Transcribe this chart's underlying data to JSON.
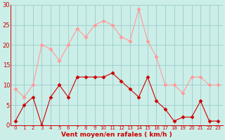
{
  "x": [
    0,
    1,
    2,
    3,
    4,
    5,
    6,
    7,
    8,
    9,
    10,
    11,
    12,
    13,
    14,
    15,
    16,
    17,
    18,
    19,
    20,
    21,
    22,
    23
  ],
  "mean_wind": [
    1,
    5,
    7,
    0,
    7,
    10,
    7,
    12,
    12,
    12,
    12,
    13,
    11,
    9,
    7,
    12,
    6,
    4,
    1,
    2,
    2,
    6,
    1,
    1
  ],
  "gust_wind": [
    9,
    7,
    10,
    20,
    19,
    16,
    20,
    24,
    22,
    25,
    26,
    25,
    22,
    21,
    29,
    21,
    17,
    10,
    10,
    8,
    12,
    12,
    10,
    10
  ],
  "mean_color": "#cc0000",
  "gust_color": "#ff9999",
  "bg_color": "#cceee8",
  "grid_color": "#99cccc",
  "xlabel": "Vent moyen/en rafales ( km/h )",
  "ylim": [
    0,
    30
  ],
  "yticks": [
    0,
    5,
    10,
    15,
    20,
    25,
    30
  ],
  "xlim_min": -0.5,
  "xlim_max": 23.5,
  "xticks": [
    0,
    1,
    2,
    3,
    4,
    5,
    6,
    7,
    8,
    9,
    10,
    11,
    12,
    13,
    14,
    15,
    16,
    17,
    18,
    19,
    20,
    21,
    22,
    23
  ],
  "linewidth": 0.8,
  "markersize": 3,
  "tick_fontsize": 5,
  "xlabel_fontsize": 6.5
}
